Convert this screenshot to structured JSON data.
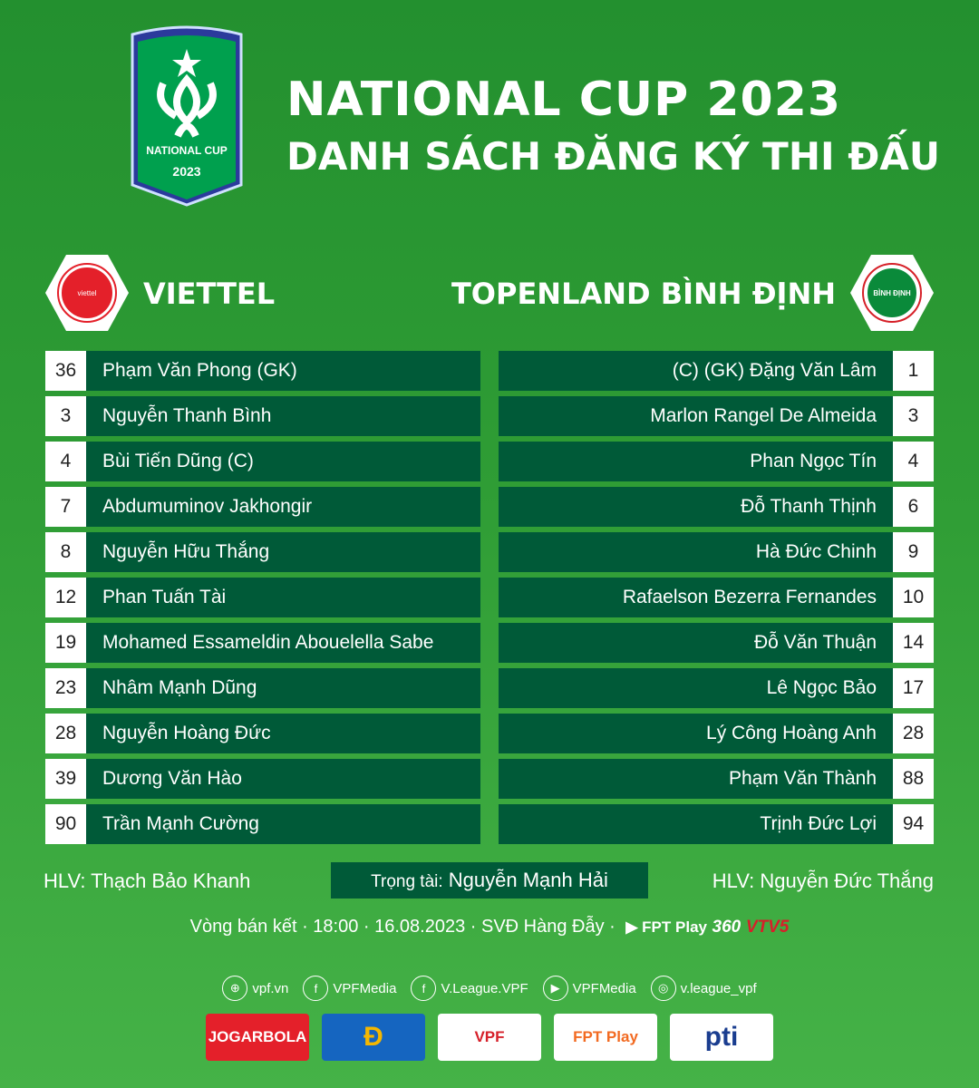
{
  "header": {
    "title": "NATIONAL CUP 2023",
    "subtitle": "DANH SÁCH ĐĂNG KÝ THI ĐẤU",
    "badge_text1": "NATIONAL CUP",
    "badge_text2": "2023"
  },
  "home": {
    "name": "VIETTEL",
    "logo_text": "viettel",
    "coach": "HLV: Thạch Bảo Khanh",
    "players": [
      {
        "no": "36",
        "name": "Phạm Văn Phong (GK)"
      },
      {
        "no": "3",
        "name": "Nguyễn Thanh Bình"
      },
      {
        "no": "4",
        "name": "Bùi Tiến Dũng (C)"
      },
      {
        "no": "7",
        "name": "Abdumuminov Jakhongir"
      },
      {
        "no": "8",
        "name": "Nguyễn Hữu Thắng"
      },
      {
        "no": "12",
        "name": "Phan Tuấn Tài"
      },
      {
        "no": "19",
        "name": "Mohamed Essameldin Abouelella Sabe"
      },
      {
        "no": "23",
        "name": "Nhâm Mạnh Dũng"
      },
      {
        "no": "28",
        "name": "Nguyễn Hoàng Đức"
      },
      {
        "no": "39",
        "name": "Dương Văn Hào"
      },
      {
        "no": "90",
        "name": "Trần Mạnh Cường"
      }
    ]
  },
  "away": {
    "name": "TOPENLAND BÌNH ĐỊNH",
    "logo_text": "BÌNH ĐỊNH",
    "coach": "HLV: Nguyễn Đức Thắng",
    "players": [
      {
        "no": "1",
        "name": "(C) (GK)  Đặng Văn Lâm"
      },
      {
        "no": "3",
        "name": "Marlon Rangel De Almeida"
      },
      {
        "no": "4",
        "name": "Phan Ngọc Tín"
      },
      {
        "no": "6",
        "name": "Đỗ Thanh Thịnh"
      },
      {
        "no": "9",
        "name": "Hà Đức Chinh"
      },
      {
        "no": "10",
        "name": "Rafaelson Bezerra Fernandes"
      },
      {
        "no": "14",
        "name": "Đỗ Văn Thuận"
      },
      {
        "no": "17",
        "name": "Lê Ngọc Bảo"
      },
      {
        "no": "28",
        "name": "Lý Công Hoàng Anh"
      },
      {
        "no": "88",
        "name": "Phạm Văn Thành"
      },
      {
        "no": "94",
        "name": "Trịnh Đức Lợi"
      }
    ]
  },
  "referee": {
    "label": "Trọng tài:",
    "name": "Nguyễn Mạnh Hải"
  },
  "match": {
    "info": "Vòng bán kết · 18:00 · 16.08.2023 · SVĐ Hàng Đẫy ·",
    "broadcasters": [
      "FPT Play",
      "360",
      "VTV5"
    ]
  },
  "social": [
    {
      "icon": "globe-icon",
      "text": "vpf.vn"
    },
    {
      "icon": "facebook-icon",
      "text": "VPFMedia"
    },
    {
      "icon": "facebook-icon",
      "text": "V.League.VPF"
    },
    {
      "icon": "youtube-icon",
      "text": "VPFMedia"
    },
    {
      "icon": "instagram-icon",
      "text": "v.league_vpf"
    }
  ],
  "sponsors": [
    {
      "name": "JOGARBOLA",
      "bg": "#e4202a",
      "fg": "#fff"
    },
    {
      "name": "Đ",
      "bg": "#1565c0",
      "fg": "#f5b700"
    },
    {
      "name": "VPF",
      "bg": "#fff",
      "fg": "#d6202a"
    },
    {
      "name": "FPT Play",
      "bg": "#fff",
      "fg": "#f26a21"
    },
    {
      "name": "pti",
      "bg": "#fff",
      "fg": "#1a3d8f"
    }
  ],
  "colors": {
    "row_bg": "#005a38",
    "accent_green": "#2f9d35"
  }
}
